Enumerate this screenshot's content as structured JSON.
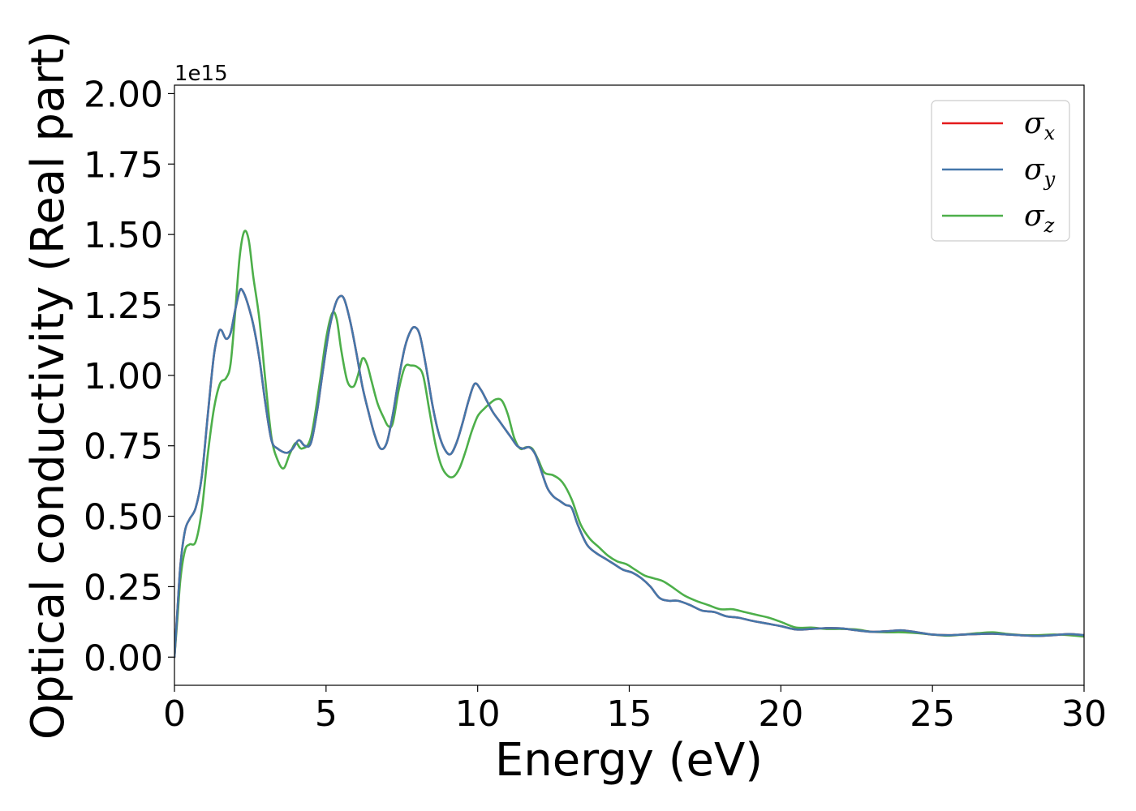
{
  "chart_data": {
    "type": "line",
    "xlabel": "Energy (eV)",
    "ylabel": "Optical conductivity (Real part)",
    "y_offset_label": "1e15",
    "xlim": [
      0,
      30
    ],
    "ylim": [
      -0.1,
      2.03
    ],
    "xticks": [
      0,
      5,
      10,
      15,
      20,
      25,
      30
    ],
    "xtick_labels": [
      "0",
      "5",
      "10",
      "15",
      "20",
      "25",
      "30"
    ],
    "yticks": [
      0.0,
      0.25,
      0.5,
      0.75,
      1.0,
      1.25,
      1.5,
      1.75,
      2.0
    ],
    "ytick_labels": [
      "0.00",
      "0.25",
      "0.50",
      "0.75",
      "1.00",
      "1.25",
      "1.50",
      "1.75",
      "2.00"
    ],
    "grid": false,
    "legend_position": "top-right",
    "series": [
      {
        "name": "σx",
        "legend_base": "σ",
        "legend_sub": "x",
        "color": "#e41a1c",
        "x": [
          0,
          0.1,
          0.2,
          0.35,
          0.5,
          0.7,
          0.9,
          1.1,
          1.3,
          1.45,
          1.55,
          1.7,
          1.85,
          2.0,
          2.15,
          2.25,
          2.4,
          2.6,
          2.8,
          3.0,
          3.2,
          3.4,
          3.7,
          3.9,
          4.1,
          4.3,
          4.5,
          4.7,
          4.9,
          5.1,
          5.3,
          5.45,
          5.6,
          5.8,
          6.0,
          6.2,
          6.4,
          6.6,
          6.8,
          7.0,
          7.2,
          7.4,
          7.6,
          7.8,
          7.95,
          8.1,
          8.3,
          8.5,
          8.7,
          8.9,
          9.1,
          9.3,
          9.5,
          9.7,
          9.9,
          10.1,
          10.3,
          10.5,
          10.7,
          10.9,
          11.1,
          11.3,
          11.5,
          11.7,
          11.9,
          12.1,
          12.3,
          12.5,
          12.7,
          12.9,
          13.1,
          13.3,
          13.6,
          13.9,
          14.2,
          14.5,
          14.8,
          15.1,
          15.4,
          15.7,
          16.0,
          16.3,
          16.6,
          17.0,
          17.4,
          17.8,
          18.2,
          18.6,
          19.0,
          19.5,
          20.0,
          20.5,
          21.0,
          21.5,
          22.0,
          22.5,
          23.0,
          23.5,
          24.0,
          24.5,
          25.0,
          25.5,
          26.0,
          26.5,
          27.0,
          27.5,
          28.0,
          28.5,
          29.0,
          29.5,
          30.0
        ],
        "y": [
          0.0,
          0.17,
          0.33,
          0.45,
          0.49,
          0.53,
          0.64,
          0.86,
          1.07,
          1.15,
          1.16,
          1.13,
          1.15,
          1.23,
          1.3,
          1.3,
          1.26,
          1.18,
          1.06,
          0.9,
          0.77,
          0.74,
          0.725,
          0.74,
          0.77,
          0.75,
          0.76,
          0.87,
          1.02,
          1.16,
          1.25,
          1.28,
          1.27,
          1.19,
          1.08,
          0.96,
          0.87,
          0.79,
          0.74,
          0.76,
          0.86,
          0.99,
          1.1,
          1.16,
          1.17,
          1.14,
          1.03,
          0.9,
          0.8,
          0.74,
          0.72,
          0.76,
          0.83,
          0.91,
          0.97,
          0.95,
          0.91,
          0.87,
          0.84,
          0.81,
          0.78,
          0.75,
          0.74,
          0.745,
          0.72,
          0.66,
          0.6,
          0.57,
          0.555,
          0.54,
          0.53,
          0.47,
          0.4,
          0.37,
          0.35,
          0.33,
          0.31,
          0.3,
          0.28,
          0.25,
          0.21,
          0.2,
          0.2,
          0.185,
          0.165,
          0.16,
          0.145,
          0.14,
          0.13,
          0.12,
          0.11,
          0.098,
          0.1,
          0.103,
          0.102,
          0.095,
          0.09,
          0.092,
          0.095,
          0.088,
          0.08,
          0.078,
          0.08,
          0.082,
          0.083,
          0.08,
          0.077,
          0.075,
          0.078,
          0.082,
          0.078
        ]
      },
      {
        "name": "σy",
        "legend_base": "σ",
        "legend_sub": "y",
        "color": "#4477aa",
        "x": [
          0,
          0.1,
          0.2,
          0.35,
          0.5,
          0.7,
          0.9,
          1.1,
          1.3,
          1.45,
          1.55,
          1.7,
          1.85,
          2.0,
          2.15,
          2.25,
          2.4,
          2.6,
          2.8,
          3.0,
          3.2,
          3.4,
          3.7,
          3.9,
          4.1,
          4.3,
          4.5,
          4.7,
          4.9,
          5.1,
          5.3,
          5.45,
          5.6,
          5.8,
          6.0,
          6.2,
          6.4,
          6.6,
          6.8,
          7.0,
          7.2,
          7.4,
          7.6,
          7.8,
          7.95,
          8.1,
          8.3,
          8.5,
          8.7,
          8.9,
          9.1,
          9.3,
          9.5,
          9.7,
          9.9,
          10.1,
          10.3,
          10.5,
          10.7,
          10.9,
          11.1,
          11.3,
          11.5,
          11.7,
          11.9,
          12.1,
          12.3,
          12.5,
          12.7,
          12.9,
          13.1,
          13.3,
          13.6,
          13.9,
          14.2,
          14.5,
          14.8,
          15.1,
          15.4,
          15.7,
          16.0,
          16.3,
          16.6,
          17.0,
          17.4,
          17.8,
          18.2,
          18.6,
          19.0,
          19.5,
          20.0,
          20.5,
          21.0,
          21.5,
          22.0,
          22.5,
          23.0,
          23.5,
          24.0,
          24.5,
          25.0,
          25.5,
          26.0,
          26.5,
          27.0,
          27.5,
          28.0,
          28.5,
          29.0,
          29.5,
          30.0
        ],
        "y": [
          0.0,
          0.17,
          0.33,
          0.45,
          0.49,
          0.53,
          0.64,
          0.86,
          1.07,
          1.15,
          1.16,
          1.13,
          1.15,
          1.23,
          1.3,
          1.3,
          1.26,
          1.18,
          1.06,
          0.9,
          0.77,
          0.74,
          0.725,
          0.74,
          0.77,
          0.75,
          0.76,
          0.87,
          1.02,
          1.16,
          1.25,
          1.28,
          1.27,
          1.19,
          1.08,
          0.96,
          0.87,
          0.79,
          0.74,
          0.76,
          0.86,
          0.99,
          1.1,
          1.16,
          1.17,
          1.14,
          1.03,
          0.9,
          0.8,
          0.74,
          0.72,
          0.76,
          0.83,
          0.91,
          0.97,
          0.95,
          0.91,
          0.87,
          0.84,
          0.81,
          0.78,
          0.75,
          0.74,
          0.745,
          0.72,
          0.66,
          0.6,
          0.57,
          0.555,
          0.54,
          0.53,
          0.47,
          0.4,
          0.37,
          0.35,
          0.33,
          0.31,
          0.3,
          0.28,
          0.25,
          0.21,
          0.2,
          0.2,
          0.185,
          0.165,
          0.16,
          0.145,
          0.14,
          0.13,
          0.12,
          0.11,
          0.098,
          0.1,
          0.103,
          0.102,
          0.095,
          0.09,
          0.092,
          0.095,
          0.088,
          0.08,
          0.078,
          0.08,
          0.082,
          0.083,
          0.08,
          0.077,
          0.075,
          0.078,
          0.082,
          0.078
        ]
      },
      {
        "name": "σz",
        "legend_base": "σ",
        "legend_sub": "z",
        "color": "#4daf4a",
        "x": [
          0,
          0.1,
          0.2,
          0.35,
          0.5,
          0.7,
          0.9,
          1.1,
          1.3,
          1.5,
          1.7,
          1.85,
          2.0,
          2.15,
          2.3,
          2.45,
          2.6,
          2.8,
          3.0,
          3.2,
          3.4,
          3.6,
          3.8,
          4.0,
          4.2,
          4.5,
          4.8,
          5.0,
          5.2,
          5.35,
          5.5,
          5.7,
          5.9,
          6.05,
          6.2,
          6.35,
          6.5,
          6.7,
          6.9,
          7.05,
          7.2,
          7.4,
          7.6,
          7.8,
          8.0,
          8.2,
          8.4,
          8.6,
          8.8,
          9.0,
          9.2,
          9.4,
          9.6,
          9.8,
          10.0,
          10.2,
          10.4,
          10.6,
          10.8,
          11.0,
          11.2,
          11.4,
          11.6,
          11.8,
          12.0,
          12.2,
          12.5,
          12.8,
          13.1,
          13.4,
          13.7,
          14.0,
          14.3,
          14.6,
          14.9,
          15.2,
          15.5,
          15.8,
          16.1,
          16.4,
          16.8,
          17.2,
          17.6,
          18.0,
          18.4,
          18.8,
          19.2,
          19.6,
          20.0,
          20.5,
          21.0,
          21.5,
          22.0,
          22.5,
          23.0,
          23.5,
          24.0,
          24.5,
          25.0,
          25.5,
          26.0,
          26.5,
          27.0,
          27.5,
          28.0,
          28.5,
          29.0,
          29.5,
          30.0
        ],
        "y": [
          0.0,
          0.14,
          0.28,
          0.38,
          0.4,
          0.41,
          0.52,
          0.72,
          0.88,
          0.97,
          0.99,
          1.04,
          1.22,
          1.42,
          1.51,
          1.48,
          1.35,
          1.2,
          0.98,
          0.78,
          0.7,
          0.67,
          0.72,
          0.76,
          0.74,
          0.78,
          0.98,
          1.13,
          1.22,
          1.2,
          1.09,
          0.98,
          0.96,
          1.0,
          1.06,
          1.04,
          0.98,
          0.9,
          0.85,
          0.82,
          0.83,
          0.95,
          1.03,
          1.035,
          1.03,
          1.0,
          0.88,
          0.76,
          0.68,
          0.645,
          0.64,
          0.67,
          0.73,
          0.8,
          0.855,
          0.88,
          0.9,
          0.915,
          0.91,
          0.86,
          0.78,
          0.74,
          0.745,
          0.74,
          0.7,
          0.655,
          0.645,
          0.62,
          0.56,
          0.47,
          0.42,
          0.39,
          0.36,
          0.34,
          0.33,
          0.31,
          0.29,
          0.28,
          0.27,
          0.25,
          0.22,
          0.2,
          0.185,
          0.17,
          0.17,
          0.16,
          0.15,
          0.14,
          0.125,
          0.105,
          0.105,
          0.1,
          0.1,
          0.098,
          0.09,
          0.088,
          0.088,
          0.085,
          0.08,
          0.076,
          0.08,
          0.085,
          0.088,
          0.082,
          0.078,
          0.078,
          0.08,
          0.078,
          0.073
        ]
      }
    ]
  }
}
